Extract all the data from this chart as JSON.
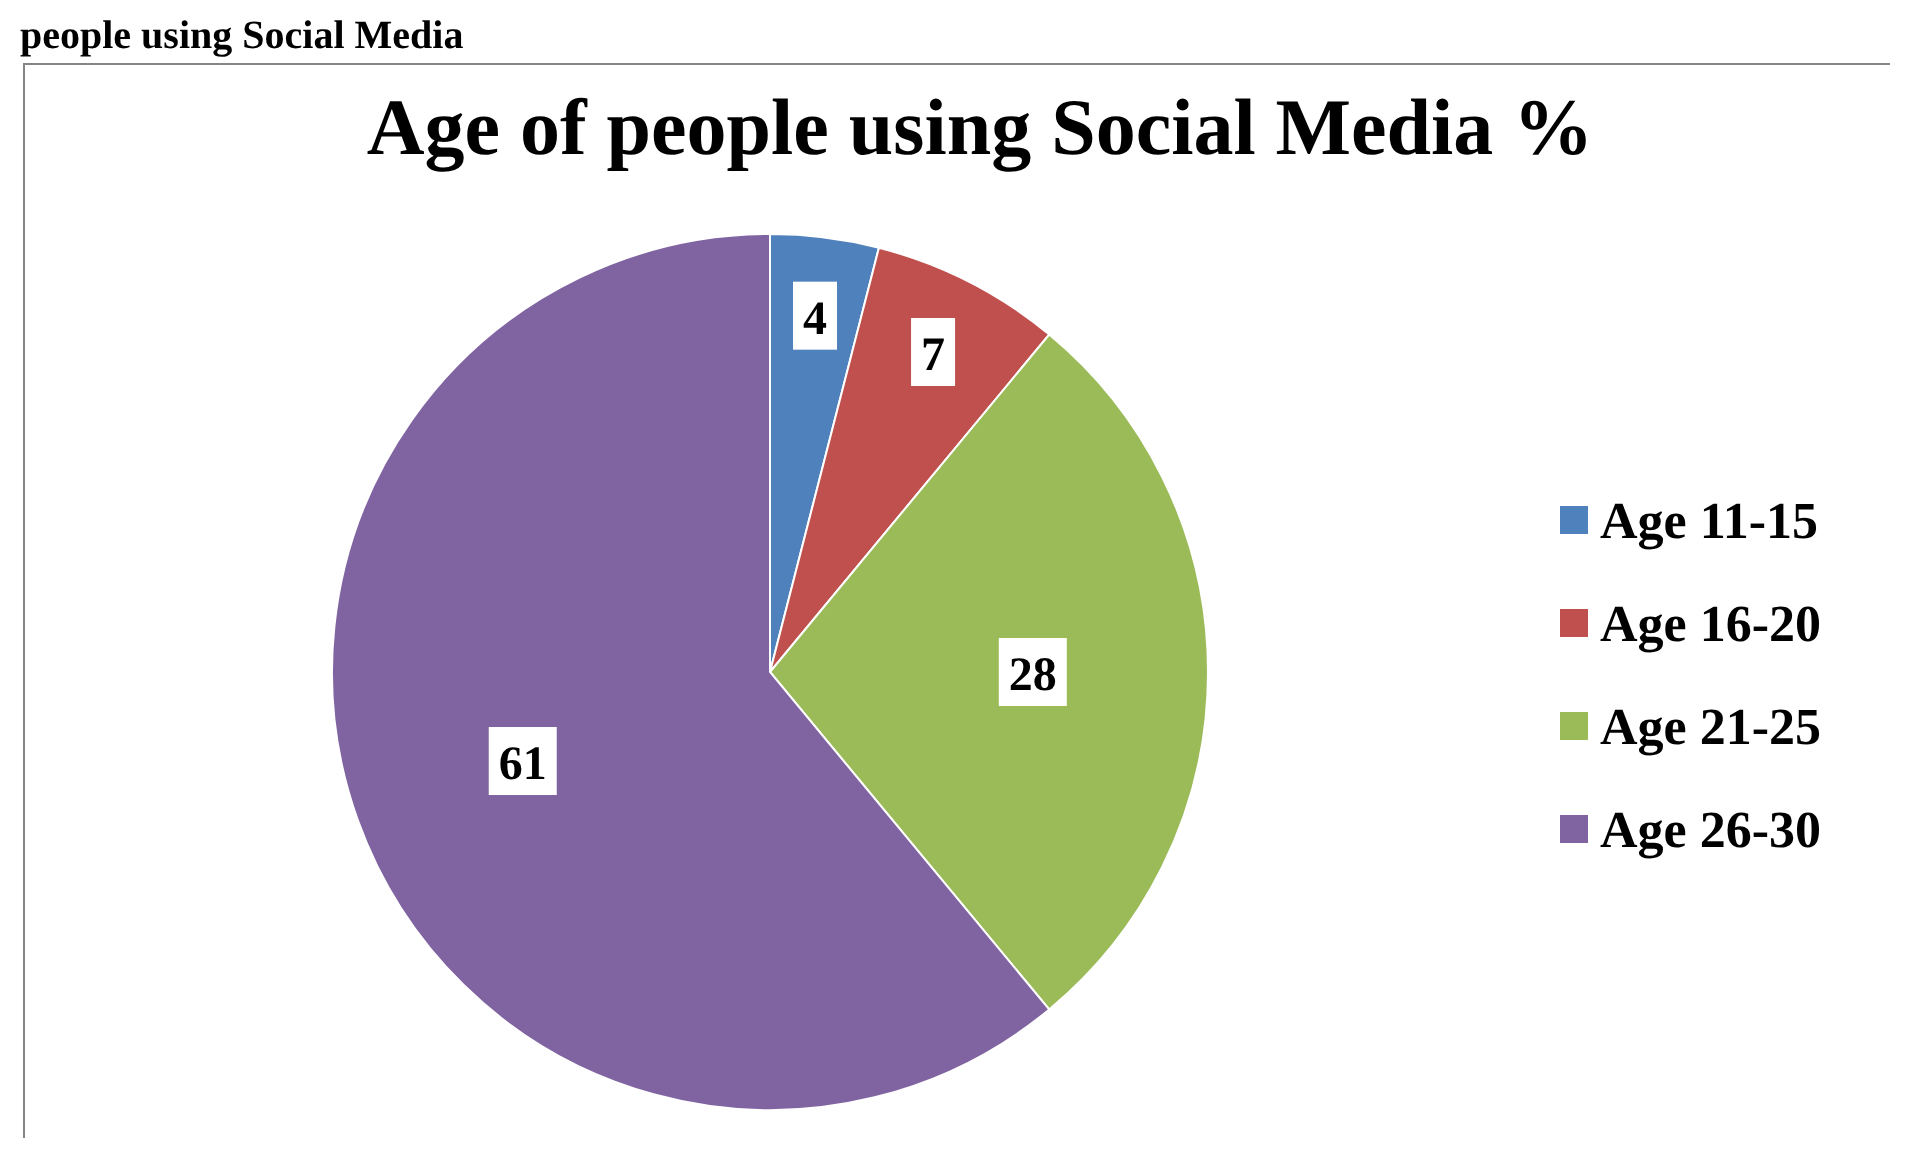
{
  "chart_data": {
    "type": "pie",
    "title": "Age of people using Social Media %",
    "annotations": [
      "people using Social Media"
    ],
    "categories": [
      "Age 11-15",
      "Age 16-20",
      "Age 21-25",
      "Age 26-30"
    ],
    "values": [
      4,
      7,
      28,
      61
    ],
    "colors": [
      "#4f81bd",
      "#c0504d",
      "#9bbb59",
      "#8064a2"
    ],
    "data_labels": true,
    "legend": "right"
  }
}
